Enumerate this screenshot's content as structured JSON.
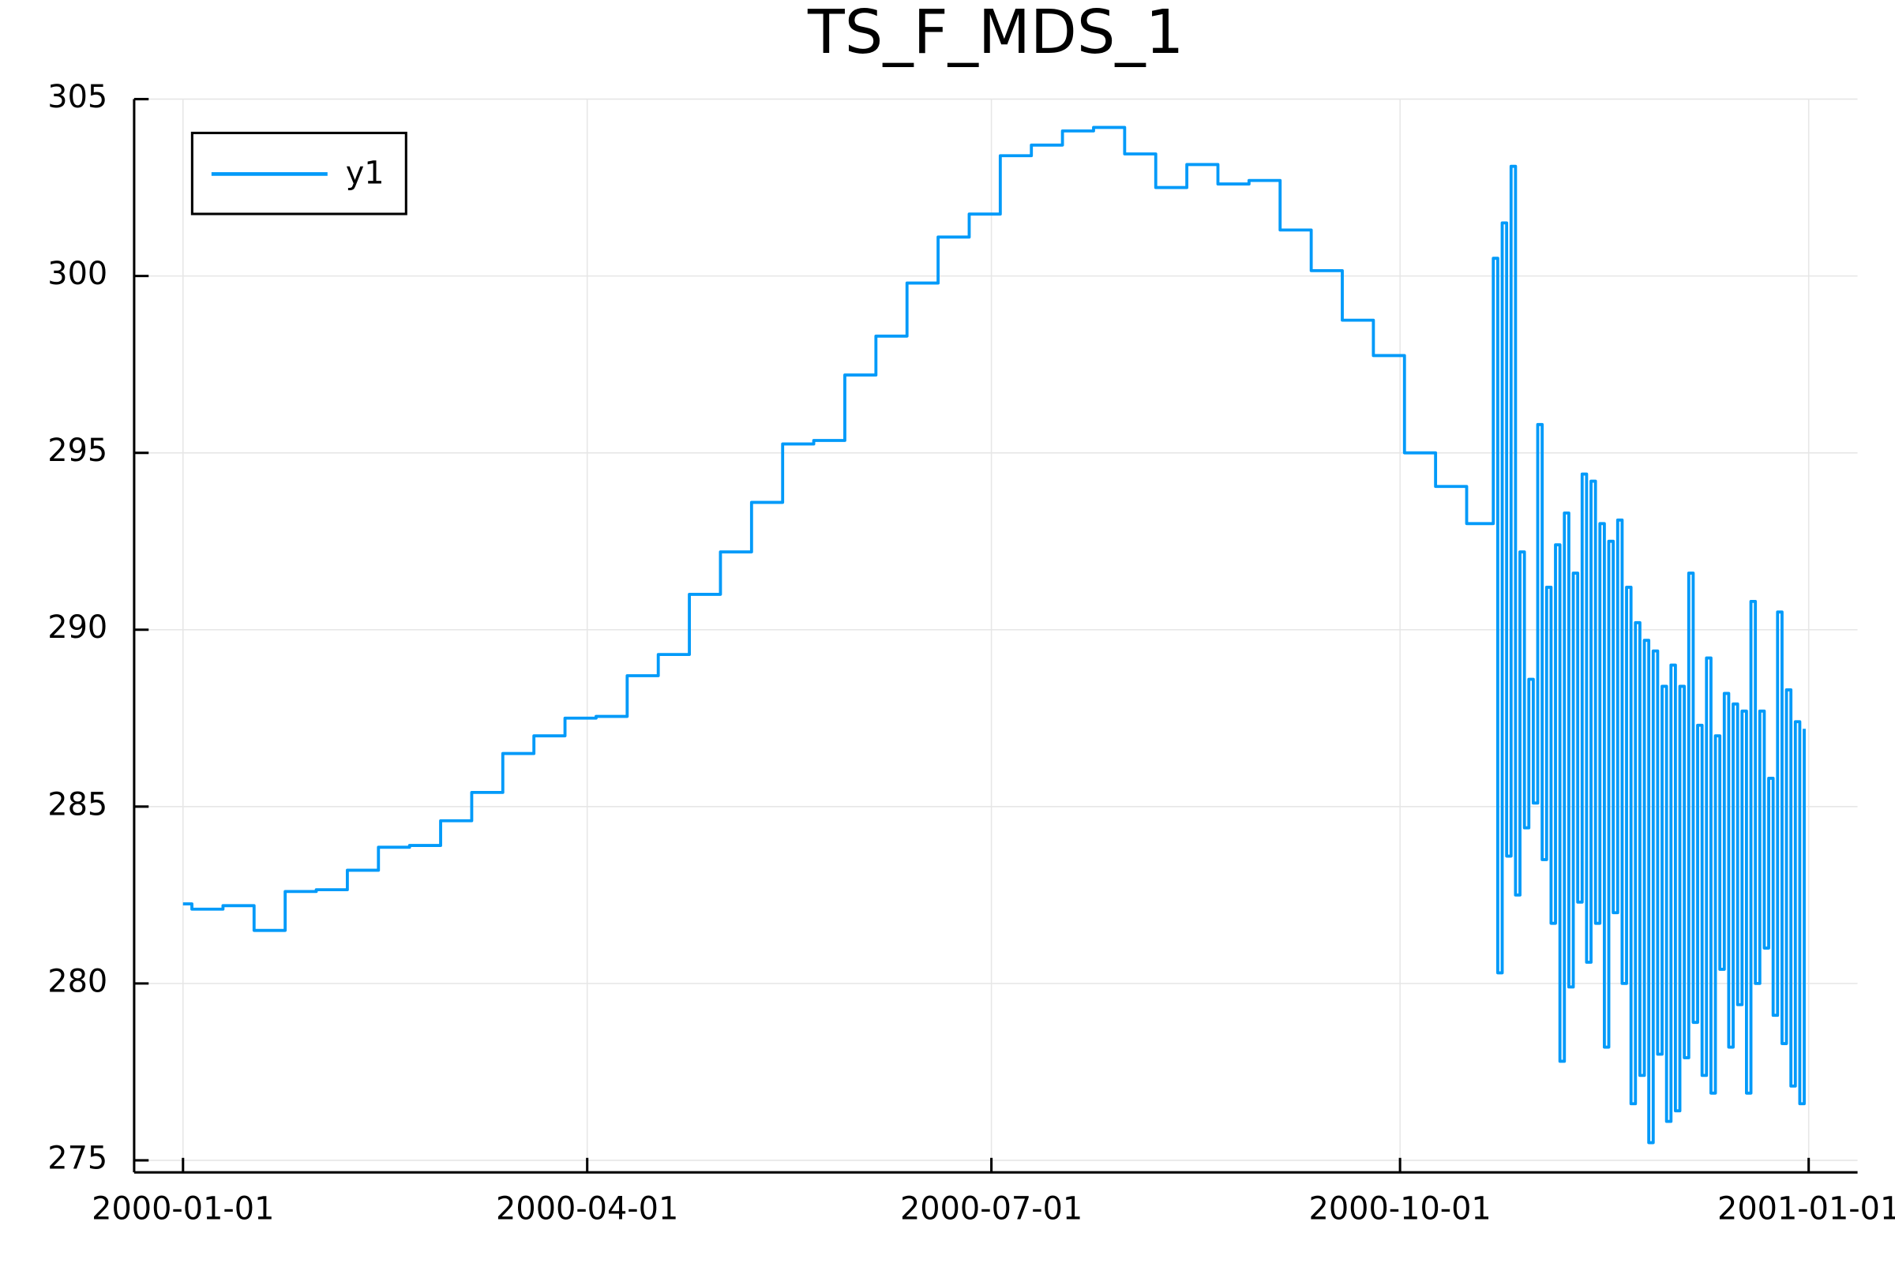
{
  "chart_data": {
    "type": "line",
    "title": "TS_F_MDS_1",
    "x": [
      "2000-01-01",
      "2000-01-03",
      "2000-01-10",
      "2000-01-17",
      "2000-01-24",
      "2000-01-31",
      "2000-02-07",
      "2000-02-14",
      "2000-02-21",
      "2000-02-28",
      "2000-03-06",
      "2000-03-13",
      "2000-03-20",
      "2000-03-27",
      "2000-04-03",
      "2000-04-10",
      "2000-04-17",
      "2000-04-24",
      "2000-05-01",
      "2000-05-08",
      "2000-05-15",
      "2000-05-22",
      "2000-05-29",
      "2000-06-05",
      "2000-06-12",
      "2000-06-19",
      "2000-06-26",
      "2000-07-03",
      "2000-07-10",
      "2000-07-17",
      "2000-07-24",
      "2000-07-31",
      "2000-08-07",
      "2000-08-14",
      "2000-08-21",
      "2000-08-28",
      "2000-09-04",
      "2000-09-11",
      "2000-09-18",
      "2000-09-25",
      "2000-10-02",
      "2000-10-09",
      "2000-10-16",
      "2000-10-22",
      "2000-10-23",
      "2000-10-24",
      "2000-10-25",
      "2000-10-26",
      "2000-10-27",
      "2000-10-28",
      "2000-10-29",
      "2000-10-30",
      "2000-10-31",
      "2000-11-01",
      "2000-11-02",
      "2000-11-03",
      "2000-11-04",
      "2000-11-05",
      "2000-11-06",
      "2000-11-07",
      "2000-11-08",
      "2000-11-09",
      "2000-11-10",
      "2000-11-11",
      "2000-11-12",
      "2000-11-13",
      "2000-11-14",
      "2000-11-15",
      "2000-11-16",
      "2000-11-17",
      "2000-11-18",
      "2000-11-19",
      "2000-11-20",
      "2000-11-21",
      "2000-11-22",
      "2000-11-23",
      "2000-11-24",
      "2000-11-25",
      "2000-11-26",
      "2000-11-27",
      "2000-11-28",
      "2000-11-29",
      "2000-11-30",
      "2000-12-01",
      "2000-12-02",
      "2000-12-03",
      "2000-12-04",
      "2000-12-05",
      "2000-12-06",
      "2000-12-07",
      "2000-12-08",
      "2000-12-09",
      "2000-12-10",
      "2000-12-11",
      "2000-12-12",
      "2000-12-13",
      "2000-12-14",
      "2000-12-15",
      "2000-12-16",
      "2000-12-17",
      "2000-12-18",
      "2000-12-19",
      "2000-12-20",
      "2000-12-21",
      "2000-12-22",
      "2000-12-23",
      "2000-12-24",
      "2000-12-25",
      "2000-12-26",
      "2000-12-27",
      "2000-12-28",
      "2000-12-29",
      "2000-12-30",
      "2000-12-31"
    ],
    "series": [
      {
        "name": "y1",
        "color": "#009af9",
        "values": [
          282.25,
          282.1,
          282.2,
          281.5,
          282.6,
          282.65,
          283.2,
          283.85,
          283.9,
          284.6,
          285.4,
          286.5,
          287.0,
          287.5,
          287.55,
          288.7,
          289.3,
          291.0,
          292.2,
          293.6,
          295.25,
          295.35,
          297.2,
          298.3,
          299.8,
          301.1,
          301.75,
          303.4,
          303.7,
          304.1,
          304.2,
          303.45,
          302.5,
          303.15,
          302.6,
          302.7,
          301.3,
          300.15,
          298.75,
          297.75,
          295.0,
          294.05,
          293.0,
          300.5,
          280.3,
          301.5,
          283.6,
          303.1,
          282.5,
          292.2,
          284.4,
          288.6,
          285.1,
          295.8,
          283.5,
          291.2,
          281.7,
          292.4,
          277.8,
          293.3,
          279.9,
          291.6,
          282.3,
          294.4,
          280.6,
          294.2,
          281.7,
          293.0,
          278.2,
          292.5,
          282.0,
          293.1,
          280.0,
          291.2,
          276.6,
          290.2,
          277.4,
          289.7,
          275.5,
          289.4,
          278.0,
          288.4,
          276.1,
          289.0,
          276.4,
          288.4,
          277.9,
          291.6,
          278.9,
          287.3,
          277.4,
          289.2,
          276.9,
          287.0,
          280.4,
          288.2,
          278.2,
          287.9,
          279.4,
          287.7,
          276.9,
          290.8,
          280.0,
          287.7,
          281.0,
          285.8,
          279.1,
          290.5,
          278.3,
          288.3,
          277.1,
          287.4,
          276.6,
          287.2
        ]
      }
    ],
    "drawstyle": "steps-post",
    "xlim": [
      "1999-12-21",
      "2001-01-12"
    ],
    "xticks": [
      "2000-01-01",
      "2000-04-01",
      "2000-07-01",
      "2000-10-01",
      "2001-01-01"
    ],
    "ylim": [
      274.66,
      305
    ],
    "yticks": [
      275,
      280,
      285,
      290,
      295,
      300,
      305
    ],
    "grid": true,
    "legend": "top-left"
  }
}
